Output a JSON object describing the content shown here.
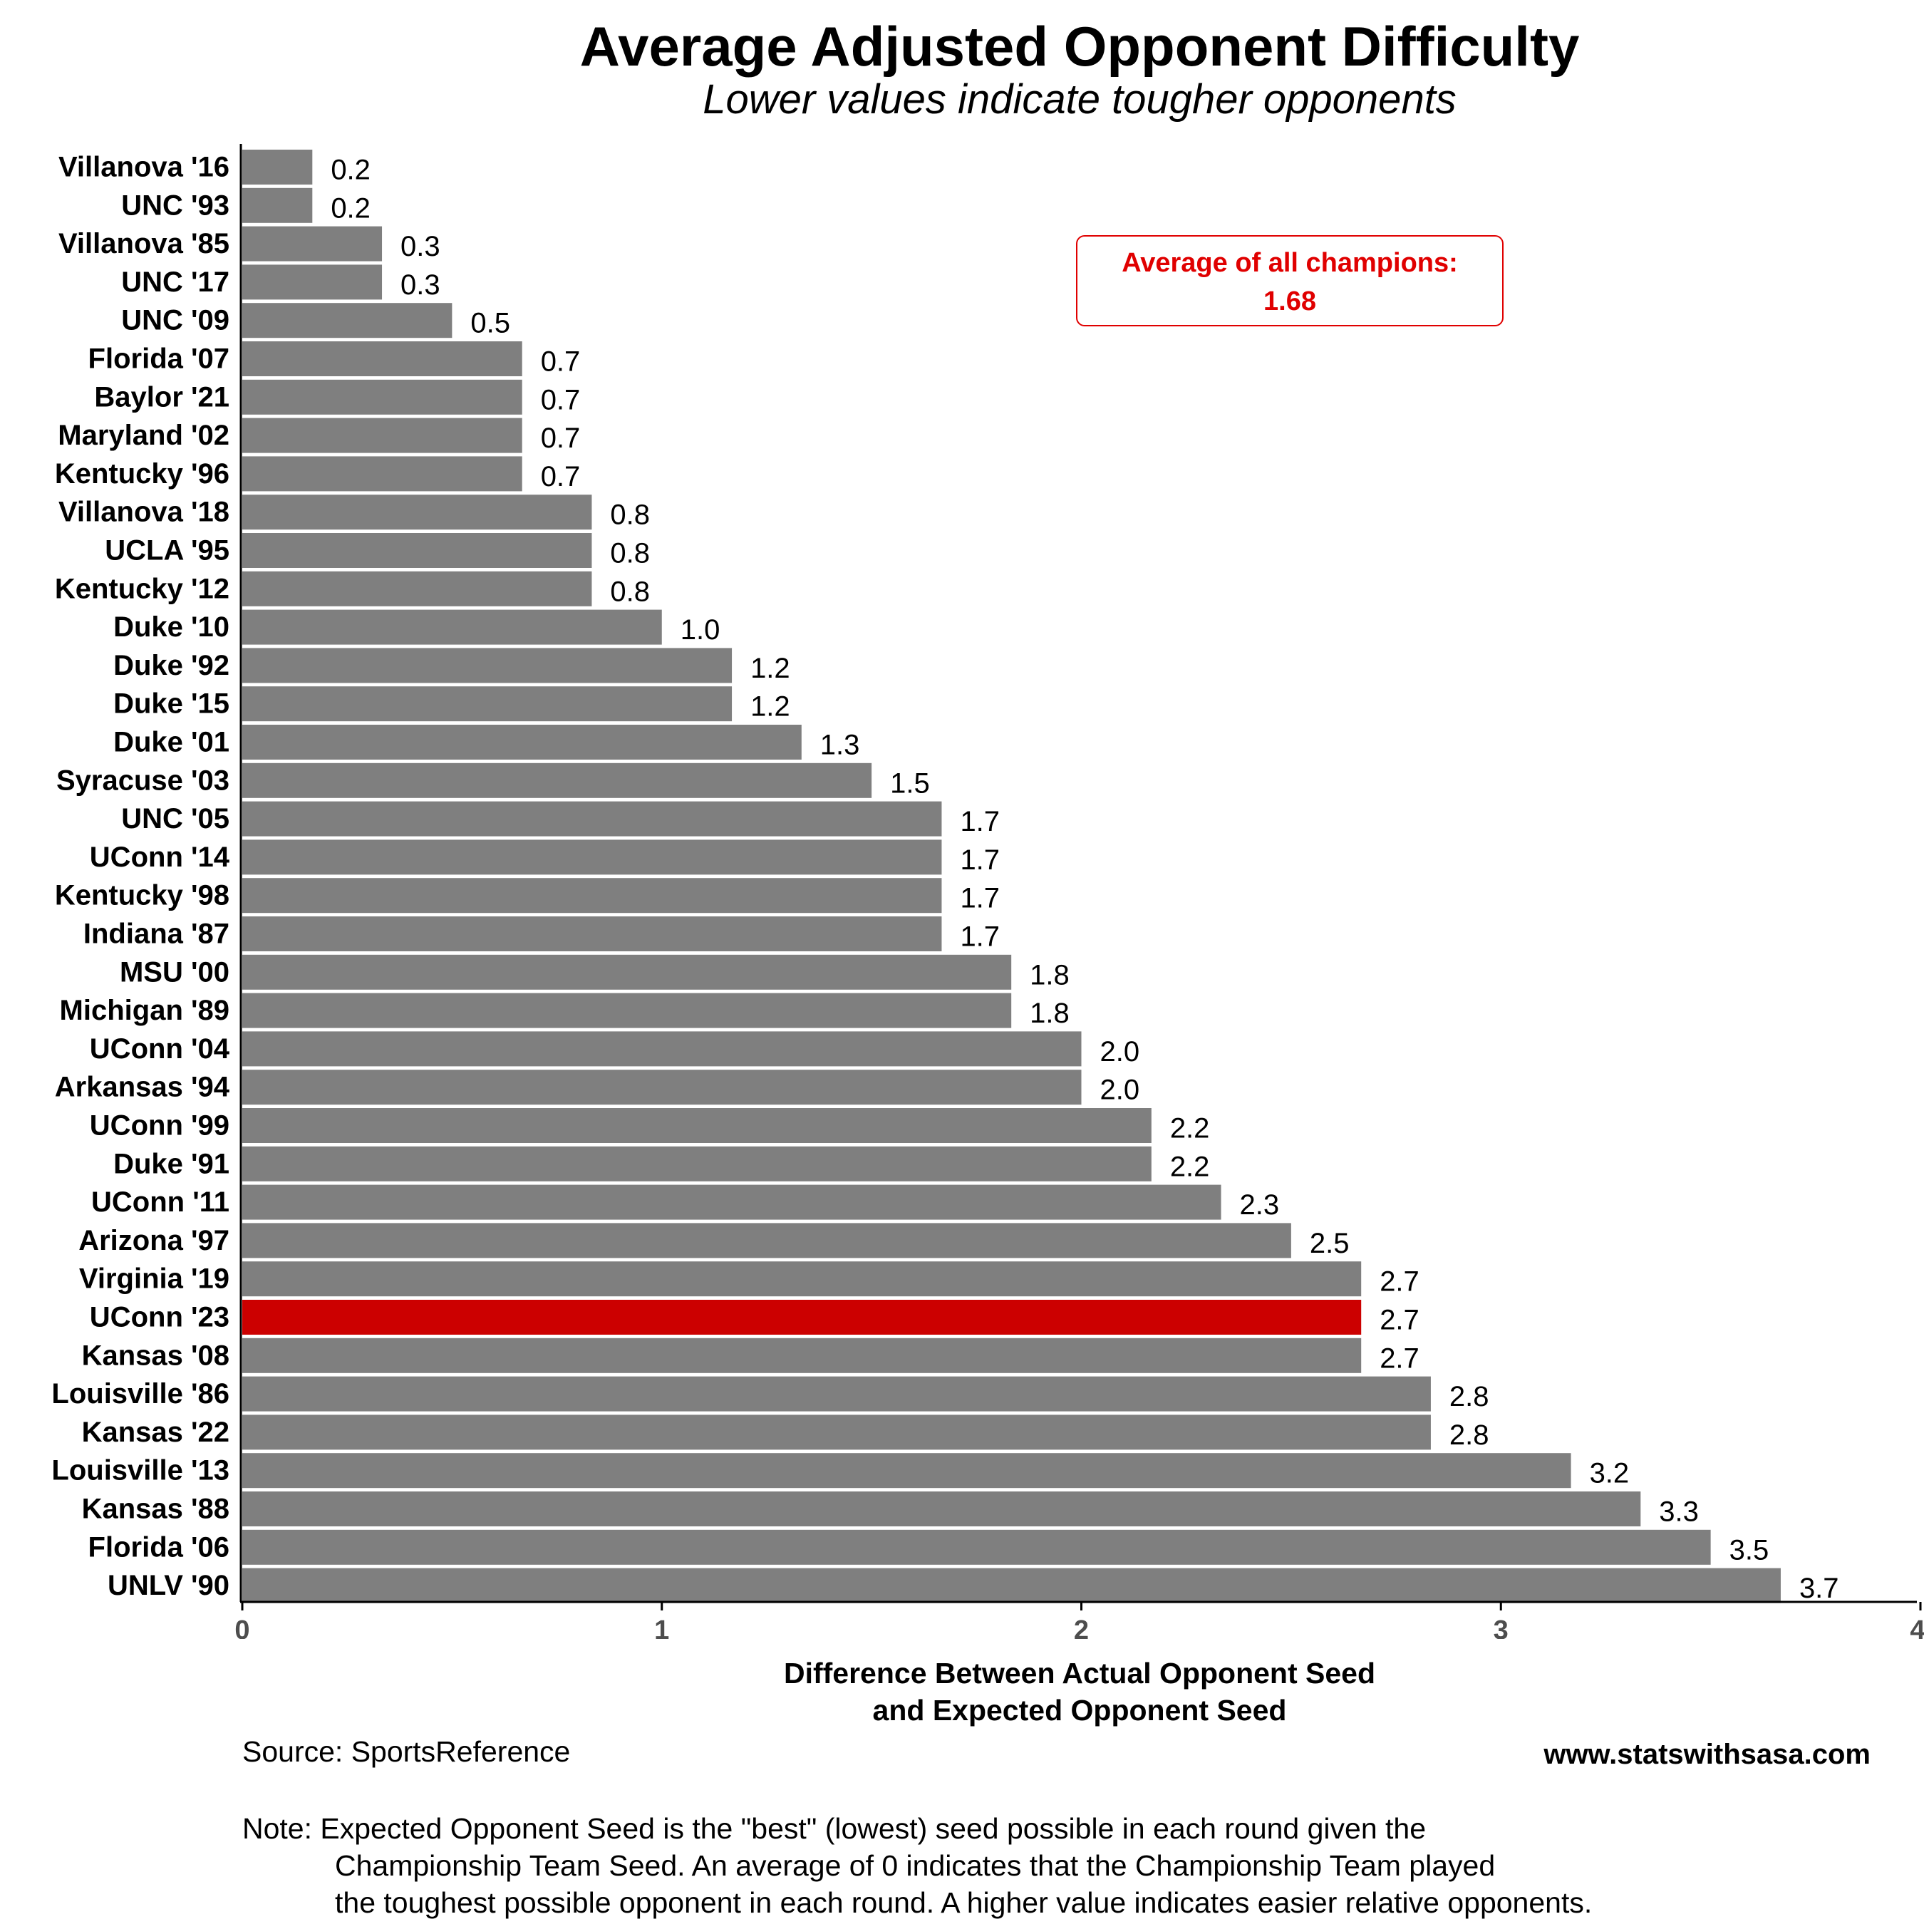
{
  "title": "Average Adjusted Opponent Difficulty",
  "subtitle": "Lower values indicate tougher opponents",
  "annotation": {
    "line1": "Average of all champions:",
    "line2": "1.68",
    "color": "#e00000"
  },
  "x_axis_title_line1": "Difference Between Actual Opponent Seed",
  "x_axis_title_line2": "and Expected Opponent Seed",
  "source": "Source: SportsReference",
  "website": "www.statswithsasa.com",
  "note": [
    "Note: Expected Opponent Seed is the \"best\" (lowest) seed possible in each round given the",
    "Championship Team Seed. An average of 0 indicates that the Championship Team played",
    "the toughest possible opponent in each round. A higher value indicates easier relative opponents."
  ],
  "colors": {
    "bar": "#7f7f7f",
    "highlight": "#cc0000",
    "axis_tick_label": "#4d4d4d"
  },
  "chart_data": {
    "type": "bar",
    "orientation": "horizontal",
    "title": "Average Adjusted Opponent Difficulty",
    "subtitle": "Lower values indicate tougher opponents",
    "xlabel": "Difference Between Actual Opponent Seed and Expected Opponent Seed",
    "ylabel": "",
    "xlim": [
      0,
      4
    ],
    "xticks": [
      0,
      1,
      2,
      3,
      4
    ],
    "grid": false,
    "highlight_category": "UConn '23",
    "reference_value": 1.68,
    "categories": [
      "Villanova '16",
      "UNC '93",
      "Villanova '85",
      "UNC '17",
      "UNC '09",
      "Florida '07",
      "Baylor '21",
      "Maryland '02",
      "Kentucky '96",
      "Villanova '18",
      "UCLA '95",
      "Kentucky '12",
      "Duke '10",
      "Duke '92",
      "Duke '15",
      "Duke '01",
      "Syracuse '03",
      "UNC '05",
      "UConn '14",
      "Kentucky '98",
      "Indiana '87",
      "MSU '00",
      "Michigan '89",
      "UConn '04",
      "Arkansas '94",
      "UConn '99",
      "Duke '91",
      "UConn '11",
      "Arizona '97",
      "Virginia '19",
      "UConn '23",
      "Kansas '08",
      "Louisville '86",
      "Kansas '22",
      "Louisville '13",
      "Kansas '88",
      "Florida '06",
      "UNLV '90"
    ],
    "values": [
      0.167,
      0.167,
      0.333,
      0.333,
      0.5,
      0.667,
      0.667,
      0.667,
      0.667,
      0.833,
      0.833,
      0.833,
      1.0,
      1.167,
      1.167,
      1.333,
      1.5,
      1.667,
      1.667,
      1.667,
      1.667,
      1.833,
      1.833,
      2.0,
      2.0,
      2.167,
      2.167,
      2.333,
      2.5,
      2.667,
      2.667,
      2.667,
      2.833,
      2.833,
      3.167,
      3.333,
      3.5,
      3.667
    ],
    "labels": [
      "0.2",
      "0.2",
      "0.3",
      "0.3",
      "0.5",
      "0.7",
      "0.7",
      "0.7",
      "0.7",
      "0.8",
      "0.8",
      "0.8",
      "1.0",
      "1.2",
      "1.2",
      "1.3",
      "1.5",
      "1.7",
      "1.7",
      "1.7",
      "1.7",
      "1.8",
      "1.8",
      "2.0",
      "2.0",
      "2.2",
      "2.2",
      "2.3",
      "2.5",
      "2.7",
      "2.7",
      "2.7",
      "2.8",
      "2.8",
      "3.2",
      "3.3",
      "3.5",
      "3.7"
    ]
  }
}
